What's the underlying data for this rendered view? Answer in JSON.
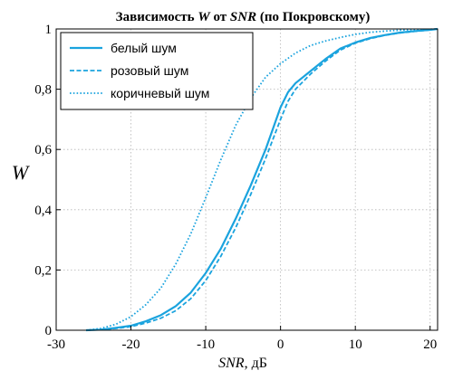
{
  "chart_data": {
    "type": "line",
    "title_parts": [
      {
        "text": "Зависимость ",
        "italic": false
      },
      {
        "text": "W",
        "italic": true
      },
      {
        "text": " от ",
        "italic": false
      },
      {
        "text": "SNR",
        "italic": true
      },
      {
        "text": " (по Покровскому)",
        "italic": false
      }
    ],
    "xlabel_parts": [
      {
        "text": "SNR",
        "italic": true
      },
      {
        "text": ", дБ",
        "italic": false
      }
    ],
    "ylabel": "W",
    "xlim": [
      -30,
      21
    ],
    "ylim": [
      0,
      1
    ],
    "x_ticks": [
      -30,
      -20,
      -10,
      0,
      10,
      20
    ],
    "x_tick_labels": [
      "-30",
      "-20",
      "-10",
      "0",
      "10",
      "20"
    ],
    "y_ticks": [
      0,
      0.2,
      0.4,
      0.6,
      0.8,
      1
    ],
    "y_tick_labels": [
      "0",
      "0,2",
      "0,4",
      "0,6",
      "0,8",
      "1"
    ],
    "grid": true,
    "legend_position": "top-left",
    "color": "#1aa3de",
    "series": [
      {
        "name": "белый шум",
        "style": "solid",
        "x": [
          -26,
          -24,
          -22,
          -20,
          -18,
          -16,
          -14,
          -12,
          -10,
          -8,
          -6,
          -4,
          -2,
          0,
          1,
          2,
          4,
          6,
          8,
          10,
          12,
          14,
          16,
          18,
          20,
          21
        ],
        "y": [
          0.0,
          0.002,
          0.008,
          0.015,
          0.03,
          0.05,
          0.08,
          0.125,
          0.19,
          0.27,
          0.37,
          0.48,
          0.6,
          0.74,
          0.79,
          0.82,
          0.86,
          0.9,
          0.935,
          0.955,
          0.97,
          0.98,
          0.988,
          0.993,
          0.997,
          1.0
        ]
      },
      {
        "name": "розовый шум",
        "style": "dashed",
        "x": [
          -26,
          -24,
          -22,
          -20,
          -18,
          -16,
          -14,
          -12,
          -10,
          -8,
          -6,
          -4,
          -2,
          0,
          1,
          2,
          4,
          6,
          8,
          10,
          12,
          14,
          16,
          18,
          20,
          21
        ],
        "y": [
          0.0,
          0.002,
          0.006,
          0.012,
          0.024,
          0.04,
          0.065,
          0.105,
          0.165,
          0.245,
          0.34,
          0.45,
          0.57,
          0.7,
          0.76,
          0.8,
          0.85,
          0.893,
          0.93,
          0.953,
          0.968,
          0.979,
          0.987,
          0.992,
          0.997,
          1.0
        ]
      },
      {
        "name": "коричневый шум",
        "style": "dotted",
        "x": [
          -26,
          -24,
          -22,
          -20,
          -18,
          -16,
          -14,
          -12,
          -10,
          -8,
          -6,
          -4,
          -2,
          0,
          2,
          4,
          6,
          8,
          10,
          12,
          14,
          16,
          18,
          20,
          21
        ],
        "y": [
          0.0,
          0.006,
          0.02,
          0.045,
          0.085,
          0.14,
          0.22,
          0.32,
          0.44,
          0.565,
          0.68,
          0.77,
          0.84,
          0.885,
          0.92,
          0.945,
          0.96,
          0.972,
          0.982,
          0.989,
          0.993,
          0.996,
          0.998,
          0.999,
          1.0
        ]
      }
    ]
  }
}
